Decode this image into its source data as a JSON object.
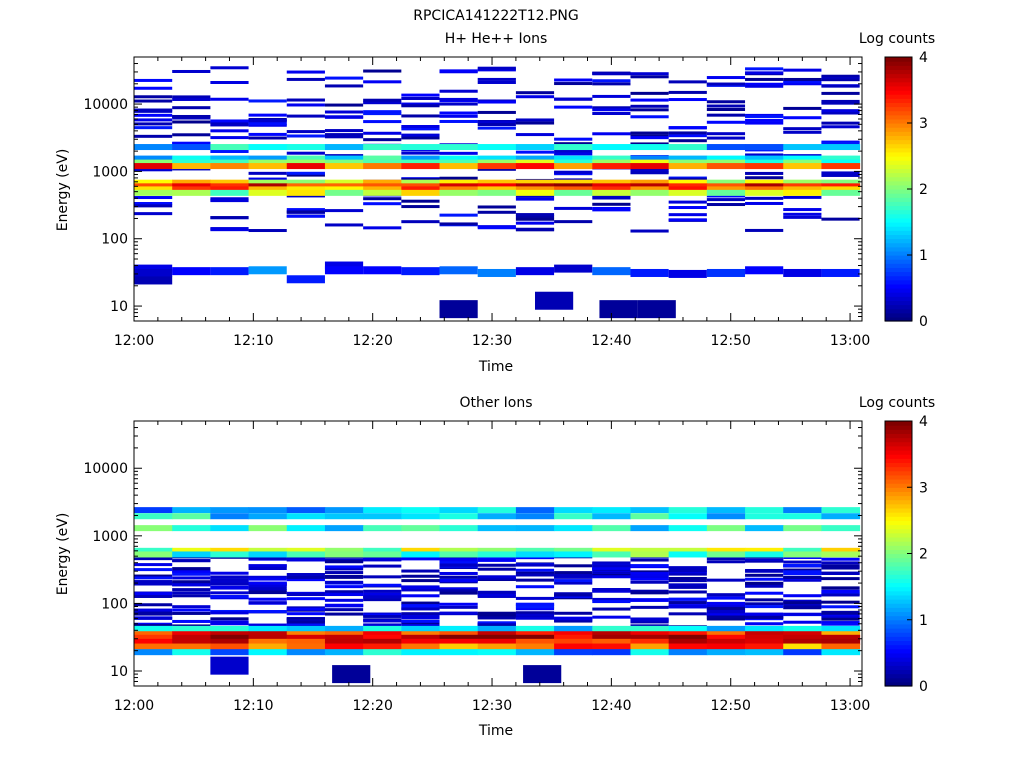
{
  "figure_title": "RPCICA141222T12.PNG",
  "chart_data": [
    {
      "type": "heatmap",
      "title": "H+ He++ Ions",
      "xlabel": "Time",
      "ylabel": "Energy (eV)",
      "x_ticks": [
        "12:00",
        "12:10",
        "12:20",
        "12:30",
        "12:40",
        "12:50",
        "13:00"
      ],
      "x_range_min": [
        0,
        61
      ],
      "y_scale": "log",
      "y_range": [
        6,
        50000
      ],
      "y_ticks": [
        "10",
        "100",
        "1000",
        "10000"
      ],
      "colorbar": {
        "label": "Log counts",
        "min": 0,
        "max": 4,
        "ticks": [
          "0",
          "1",
          "2",
          "3",
          "4"
        ]
      },
      "time_bin_min": 3.2,
      "cells": [
        {
          "t0": 0,
          "e": 36,
          "v": 0.4
        },
        {
          "t0": 0,
          "e": 31,
          "v": 0.3
        },
        {
          "t0": 0,
          "e": 24,
          "v": 0.2
        },
        {
          "t0": 3.2,
          "e": 33,
          "v": 0.5
        },
        {
          "t0": 6.4,
          "e": 33,
          "v": 0.6
        },
        {
          "t0": 9.6,
          "e": 34,
          "v": 1.1
        },
        {
          "t0": 12.8,
          "e": 25,
          "v": 0.6
        },
        {
          "t0": 16,
          "e": 40,
          "v": 0.4
        },
        {
          "t0": 16,
          "e": 34,
          "v": 0.5
        },
        {
          "t0": 19.2,
          "e": 34,
          "v": 0.5
        },
        {
          "t0": 22.4,
          "e": 33,
          "v": 0.6
        },
        {
          "t0": 25.6,
          "e": 34,
          "v": 0.9
        },
        {
          "t0": 28.8,
          "e": 31,
          "v": 1.0
        },
        {
          "t0": 32,
          "e": 33,
          "v": 0.4
        },
        {
          "t0": 35.2,
          "e": 36,
          "v": 0.3
        },
        {
          "t0": 38.4,
          "e": 33,
          "v": 0.9
        },
        {
          "t0": 41.6,
          "e": 31,
          "v": 0.6
        },
        {
          "t0": 44.8,
          "e": 30,
          "v": 0.4
        },
        {
          "t0": 48,
          "e": 31,
          "v": 0.7
        },
        {
          "t0": 51.2,
          "e": 34,
          "v": 0.5
        },
        {
          "t0": 54.4,
          "e": 31,
          "v": 0.4
        },
        {
          "t0": 57.6,
          "e": 31,
          "v": 0.6
        },
        {
          "t0": 25.6,
          "e": 9,
          "v": 0.1
        },
        {
          "t0": 33.6,
          "e": 12,
          "v": 0.2
        },
        {
          "t0": 39,
          "e": 9,
          "v": 0.1
        },
        {
          "t0": 42.2,
          "e": 9,
          "v": 0.1
        }
      ],
      "bands": [
        {
          "e": 2300,
          "v": 1.3
        },
        {
          "e": 1550,
          "v": 1.5
        },
        {
          "e": 1350,
          "v": 2.0
        },
        {
          "e": 1200,
          "v": 3.2
        },
        {
          "e": 680,
          "v": 2.5
        },
        {
          "e": 600,
          "v": 3.6
        },
        {
          "e": 540,
          "v": 3.0
        },
        {
          "e": 480,
          "v": 2.2
        }
      ]
    },
    {
      "type": "heatmap",
      "title": "Other Ions",
      "xlabel": "Time",
      "ylabel": "Energy (eV)",
      "x_ticks": [
        "12:00",
        "12:10",
        "12:20",
        "12:30",
        "12:40",
        "12:50",
        "13:00"
      ],
      "x_range_min": [
        0,
        61
      ],
      "y_scale": "log",
      "y_range": [
        6,
        50000
      ],
      "y_ticks": [
        "10",
        "100",
        "1000",
        "10000"
      ],
      "colorbar": {
        "label": "Log counts",
        "min": 0,
        "max": 4,
        "ticks": [
          "0",
          "1",
          "2",
          "3",
          "4"
        ]
      },
      "time_bin_min": 3.2,
      "cells": [
        {
          "t0": 6.4,
          "e": 12,
          "v": 0.3
        },
        {
          "t0": 16.6,
          "e": 9,
          "v": 0.1
        },
        {
          "t0": 32.6,
          "e": 9,
          "v": 0.1
        }
      ],
      "bands": [
        {
          "e": 2400,
          "v": 1.2
        },
        {
          "e": 1950,
          "v": 1.4
        },
        {
          "e": 1300,
          "v": 1.6
        },
        {
          "e": 600,
          "v": 2.2
        },
        {
          "e": 530,
          "v": 1.8
        },
        {
          "e": 42,
          "v": 1.6
        },
        {
          "e": 35,
          "v": 3.3
        },
        {
          "e": 31,
          "v": 3.7
        },
        {
          "e": 27,
          "v": 3.5
        },
        {
          "e": 23,
          "v": 3.1
        },
        {
          "e": 19,
          "v": 1.2
        }
      ]
    }
  ]
}
